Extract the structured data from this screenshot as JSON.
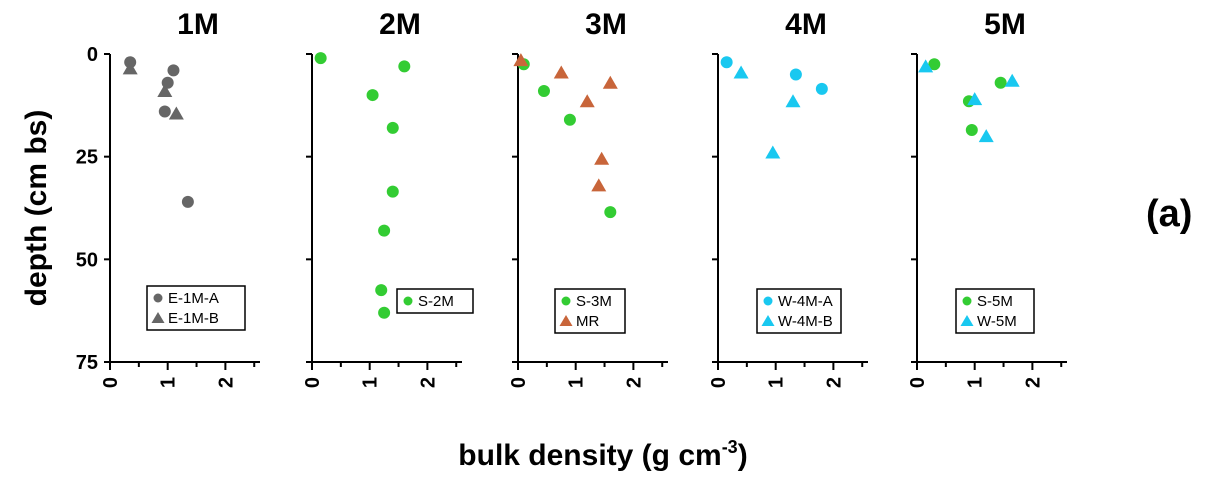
{
  "figure": {
    "panel_tag": "(a)",
    "ylabel": "depth (cm bs)",
    "xlabel_main": "bulk density (g cm",
    "xlabel_sup": "-3",
    "xlabel_close": ")"
  },
  "chart_data": [
    {
      "type": "scatter",
      "title": "1M",
      "xlim": [
        0,
        2.6
      ],
      "ylim": [
        0,
        75
      ],
      "y_inverted": true,
      "xticks": [
        0,
        1,
        2
      ],
      "yticks": [
        0,
        25,
        50,
        75
      ],
      "series": [
        {
          "name": "E-1M-A",
          "marker": "circle",
          "color": "#666666",
          "points": [
            [
              0.35,
              2
            ],
            [
              1.1,
              4
            ],
            [
              1.0,
              7
            ],
            [
              0.95,
              14
            ],
            [
              1.35,
              36
            ]
          ]
        },
        {
          "name": "E-1M-B",
          "marker": "triangle",
          "color": "#666666",
          "points": [
            [
              0.35,
              3.5
            ],
            [
              0.95,
              9
            ],
            [
              1.15,
              14.5
            ]
          ]
        }
      ]
    },
    {
      "type": "scatter",
      "title": "2M",
      "xlim": [
        0,
        2.6
      ],
      "ylim": [
        0,
        75
      ],
      "y_inverted": true,
      "xticks": [
        0,
        1,
        2
      ],
      "yticks": [
        0,
        25,
        50,
        75
      ],
      "series": [
        {
          "name": "S-2M",
          "marker": "circle",
          "color": "#33cc33",
          "points": [
            [
              0.15,
              1
            ],
            [
              1.6,
              3
            ],
            [
              1.05,
              10
            ],
            [
              1.4,
              18
            ],
            [
              1.4,
              33.5
            ],
            [
              1.25,
              43
            ],
            [
              1.2,
              57.5
            ],
            [
              1.25,
              63
            ]
          ]
        }
      ]
    },
    {
      "type": "scatter",
      "title": "3M",
      "xlim": [
        0,
        2.6
      ],
      "ylim": [
        0,
        75
      ],
      "y_inverted": true,
      "xticks": [
        0,
        1,
        2
      ],
      "yticks": [
        0,
        25,
        50,
        75
      ],
      "series": [
        {
          "name": "S-3M",
          "marker": "circle",
          "color": "#33cc33",
          "points": [
            [
              0.1,
              2.5
            ],
            [
              0.45,
              9
            ],
            [
              0.9,
              16
            ],
            [
              1.6,
              38.5
            ]
          ]
        },
        {
          "name": "MR",
          "marker": "triangle",
          "color": "#c8653a",
          "points": [
            [
              0.05,
              1.5
            ],
            [
              0.75,
              4.5
            ],
            [
              1.6,
              7
            ],
            [
              1.2,
              11.5
            ],
            [
              1.45,
              25.5
            ],
            [
              1.4,
              32
            ]
          ]
        }
      ]
    },
    {
      "type": "scatter",
      "title": "4M",
      "xlim": [
        0,
        2.6
      ],
      "ylim": [
        0,
        75
      ],
      "y_inverted": true,
      "xticks": [
        0,
        1,
        2
      ],
      "yticks": [
        0,
        25,
        50,
        75
      ],
      "series": [
        {
          "name": "W-4M-A",
          "marker": "circle",
          "color": "#19c8f0",
          "points": [
            [
              0.15,
              2
            ],
            [
              1.35,
              5
            ],
            [
              1.8,
              8.5
            ]
          ]
        },
        {
          "name": "W-4M-B",
          "marker": "triangle",
          "color": "#19c8f0",
          "points": [
            [
              0.4,
              4.5
            ],
            [
              1.3,
              11.5
            ],
            [
              0.95,
              24
            ]
          ]
        }
      ]
    },
    {
      "type": "scatter",
      "title": "5M",
      "xlim": [
        0,
        2.6
      ],
      "ylim": [
        0,
        75
      ],
      "y_inverted": true,
      "xticks": [
        0,
        1,
        2
      ],
      "yticks": [
        0,
        25,
        50,
        75
      ],
      "series": [
        {
          "name": "S-5M",
          "marker": "circle",
          "color": "#33cc33",
          "points": [
            [
              0.3,
              2.5
            ],
            [
              1.45,
              7
            ],
            [
              0.9,
              11.5
            ],
            [
              0.95,
              18.5
            ]
          ]
        },
        {
          "name": "W-5M",
          "marker": "triangle",
          "color": "#19c8f0",
          "points": [
            [
              0.15,
              3
            ],
            [
              1.65,
              6.5
            ],
            [
              1.0,
              11
            ],
            [
              1.2,
              20
            ]
          ]
        }
      ]
    }
  ]
}
